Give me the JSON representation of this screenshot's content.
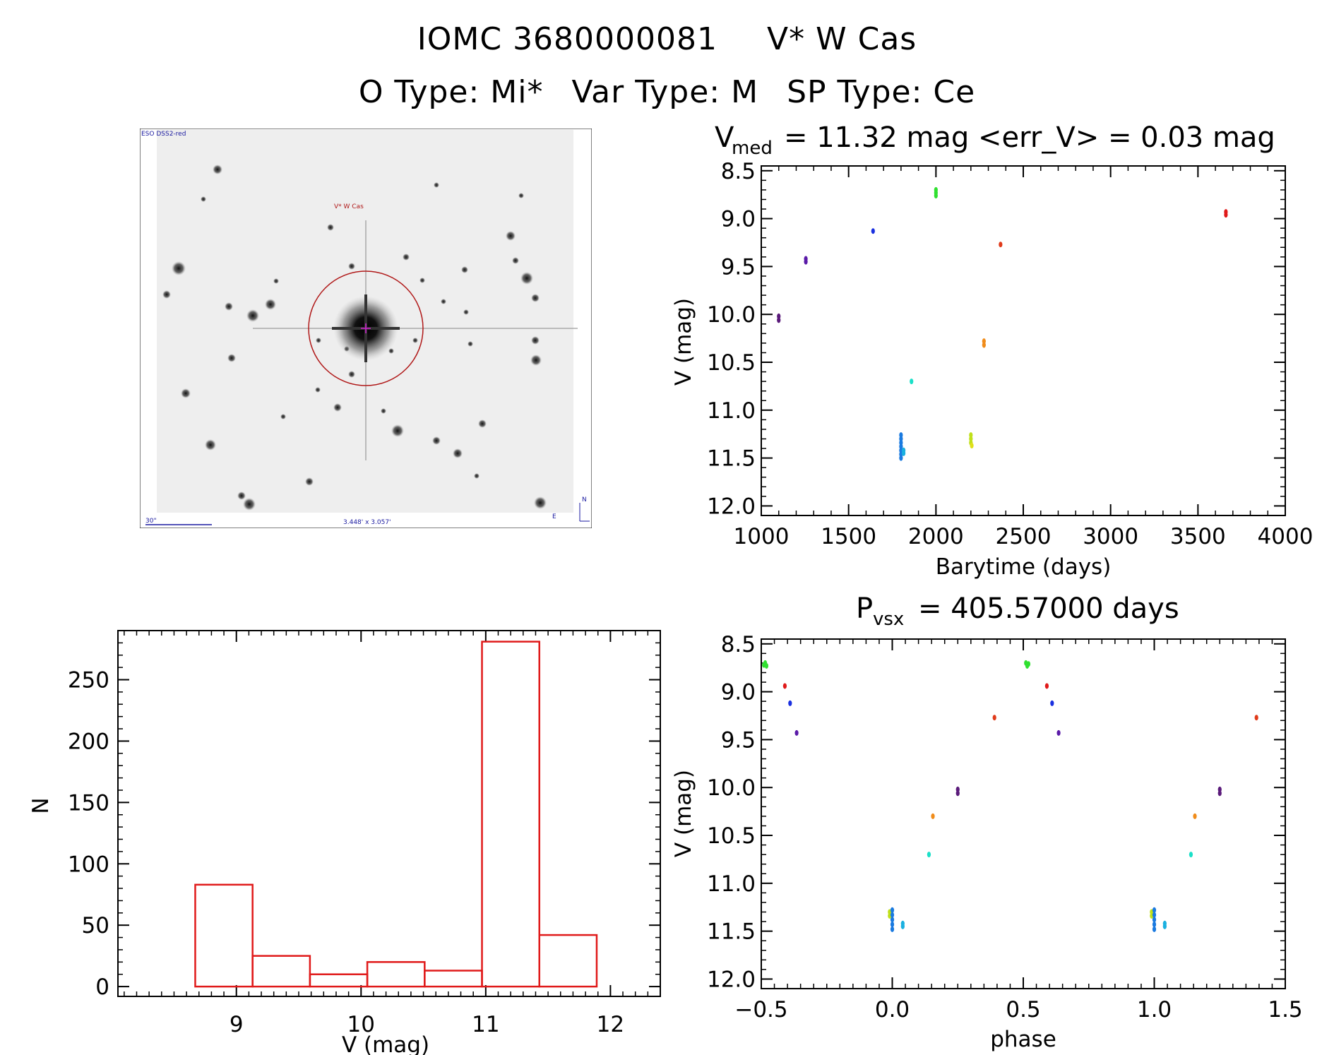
{
  "header": {
    "title_id": "IOMC 3680000081",
    "title_name": "V* W Cas",
    "otype_label": "O Type: Mi*",
    "vartype_label": "Var Type: M",
    "sptype_label": "SP Type: Ce"
  },
  "thumbnail": {
    "survey": "ESO DSS2-red",
    "target": "V* W Cas",
    "scale": "30\"",
    "size": "3.448' x 3.057'",
    "north": "N",
    "east": "E"
  },
  "chart_data": [
    {
      "type": "scatter",
      "id": "light-curve",
      "title_main": "V",
      "title_sub": "med",
      "title_rest": "= 11.32 mag <err_V> = 0.03 mag",
      "xlabel": "Barytime (days)",
      "ylabel": "V (mag)",
      "xlim": [
        1000,
        4000
      ],
      "ylim": [
        12.1,
        8.45
      ],
      "y_inverted": true,
      "xticks": [
        1000,
        1500,
        2000,
        2500,
        3000,
        3500,
        4000
      ],
      "yticks": [
        8.5,
        9.0,
        9.5,
        10.0,
        10.5,
        11.0,
        11.5,
        12.0
      ],
      "yticklabels": [
        "8.5",
        "9.0",
        "9.5",
        "10.0",
        "10.5",
        "11.0",
        "11.5",
        "12.0"
      ],
      "points": [
        {
          "x": 1100,
          "y": 10.02,
          "color": "#5a1a7a"
        },
        {
          "x": 1100,
          "y": 10.06,
          "color": "#5a1a7a"
        },
        {
          "x": 1255,
          "y": 9.42,
          "color": "#5a1aa8"
        },
        {
          "x": 1255,
          "y": 9.45,
          "color": "#5a1aa8"
        },
        {
          "x": 1640,
          "y": 9.13,
          "color": "#1a30e0"
        },
        {
          "x": 1800,
          "y": 11.26,
          "color": "#1a7ae0"
        },
        {
          "x": 1800,
          "y": 11.3,
          "color": "#1a7ae0"
        },
        {
          "x": 1800,
          "y": 11.34,
          "color": "#1a7ae0"
        },
        {
          "x": 1800,
          "y": 11.38,
          "color": "#1a7ae0"
        },
        {
          "x": 1800,
          "y": 11.42,
          "color": "#1a7ae0"
        },
        {
          "x": 1800,
          "y": 11.46,
          "color": "#1a7ae0"
        },
        {
          "x": 1800,
          "y": 11.5,
          "color": "#1a7ae0"
        },
        {
          "x": 1815,
          "y": 11.42,
          "color": "#1ab0e0"
        },
        {
          "x": 1815,
          "y": 11.45,
          "color": "#1ab0e0"
        },
        {
          "x": 1860,
          "y": 10.7,
          "color": "#1ae0c8"
        },
        {
          "x": 2000,
          "y": 8.7,
          "color": "#30e030"
        },
        {
          "x": 2000,
          "y": 8.73,
          "color": "#30e030"
        },
        {
          "x": 2000,
          "y": 8.76,
          "color": "#30e030"
        },
        {
          "x": 2200,
          "y": 11.26,
          "color": "#c0e01a"
        },
        {
          "x": 2200,
          "y": 11.3,
          "color": "#c0e01a"
        },
        {
          "x": 2200,
          "y": 11.34,
          "color": "#c0e01a"
        },
        {
          "x": 2205,
          "y": 11.37,
          "color": "#e0e01a"
        },
        {
          "x": 2275,
          "y": 10.28,
          "color": "#f08c1a"
        },
        {
          "x": 2275,
          "y": 10.32,
          "color": "#f08c1a"
        },
        {
          "x": 2370,
          "y": 9.27,
          "color": "#e03a1a"
        },
        {
          "x": 3660,
          "y": 8.93,
          "color": "#e01a1a"
        },
        {
          "x": 3660,
          "y": 8.96,
          "color": "#e01a1a"
        }
      ]
    },
    {
      "type": "bar",
      "id": "histogram",
      "xlabel": "V (mag)",
      "ylabel": "N",
      "xlim": [
        8.05,
        12.4
      ],
      "ylim": [
        -8,
        290
      ],
      "xticks": [
        9,
        10,
        11,
        12
      ],
      "yticks": [
        0,
        50,
        100,
        150,
        200,
        250
      ],
      "bin_edges": [
        8.67,
        9.13,
        9.59,
        10.05,
        10.51,
        10.97,
        11.43,
        11.89
      ],
      "values": [
        83,
        25,
        10,
        20,
        13,
        281,
        42
      ],
      "color": "#e01a1a"
    },
    {
      "type": "scatter",
      "id": "phased-curve",
      "title_main": "P",
      "title_sub": "vsx",
      "title_rest": "= 405.57000 days",
      "xlabel": "phase",
      "ylabel": "V (mag)",
      "xlim": [
        -0.5,
        1.5
      ],
      "ylim": [
        12.1,
        8.45
      ],
      "y_inverted": true,
      "xticks": [
        -0.5,
        0.0,
        0.5,
        1.0,
        1.5
      ],
      "xticklabels": [
        "−0.5",
        "0.0",
        "0.5",
        "1.0",
        "1.5"
      ],
      "yticks": [
        8.5,
        9.0,
        9.5,
        10.0,
        10.5,
        11.0,
        11.5,
        12.0
      ],
      "yticklabels": [
        "8.5",
        "9.0",
        "9.5",
        "10.0",
        "10.5",
        "11.0",
        "11.5",
        "12.0"
      ],
      "points": [
        {
          "x": -0.49,
          "y": 8.72,
          "color": "#30e030"
        },
        {
          "x": -0.485,
          "y": 8.7,
          "color": "#30e030"
        },
        {
          "x": -0.48,
          "y": 8.73,
          "color": "#30e030"
        },
        {
          "x": -0.41,
          "y": 8.94,
          "color": "#e01a1a"
        },
        {
          "x": -0.39,
          "y": 9.12,
          "color": "#1a30e0"
        },
        {
          "x": -0.365,
          "y": 9.43,
          "color": "#5a1aa8"
        },
        {
          "x": -0.01,
          "y": 11.3,
          "color": "#c0e01a"
        },
        {
          "x": -0.01,
          "y": 11.34,
          "color": "#c0e01a"
        },
        {
          "x": 0.0,
          "y": 11.28,
          "color": "#1a7ae0"
        },
        {
          "x": 0.0,
          "y": 11.33,
          "color": "#1a7ae0"
        },
        {
          "x": 0.0,
          "y": 11.38,
          "color": "#1a7ae0"
        },
        {
          "x": 0.0,
          "y": 11.43,
          "color": "#1a7ae0"
        },
        {
          "x": 0.0,
          "y": 11.48,
          "color": "#1a7ae0"
        },
        {
          "x": 0.04,
          "y": 11.42,
          "color": "#1ab0e0"
        },
        {
          "x": 0.04,
          "y": 11.45,
          "color": "#1ab0e0"
        },
        {
          "x": 0.14,
          "y": 10.7,
          "color": "#1ae0c8"
        },
        {
          "x": 0.155,
          "y": 10.3,
          "color": "#f08c1a"
        },
        {
          "x": 0.25,
          "y": 10.02,
          "color": "#5a1a7a"
        },
        {
          "x": 0.25,
          "y": 10.06,
          "color": "#5a1a7a"
        },
        {
          "x": 0.39,
          "y": 9.27,
          "color": "#e03a1a"
        },
        {
          "x": 0.51,
          "y": 8.7,
          "color": "#30e030"
        },
        {
          "x": 0.515,
          "y": 8.73,
          "color": "#30e030"
        },
        {
          "x": 0.52,
          "y": 8.71,
          "color": "#30e030"
        },
        {
          "x": 0.59,
          "y": 8.94,
          "color": "#e01a1a"
        },
        {
          "x": 0.61,
          "y": 9.12,
          "color": "#1a30e0"
        },
        {
          "x": 0.635,
          "y": 9.43,
          "color": "#5a1aa8"
        },
        {
          "x": 0.99,
          "y": 11.3,
          "color": "#c0e01a"
        },
        {
          "x": 0.99,
          "y": 11.34,
          "color": "#c0e01a"
        },
        {
          "x": 1.0,
          "y": 11.28,
          "color": "#1a7ae0"
        },
        {
          "x": 1.0,
          "y": 11.33,
          "color": "#1a7ae0"
        },
        {
          "x": 1.0,
          "y": 11.38,
          "color": "#1a7ae0"
        },
        {
          "x": 1.0,
          "y": 11.43,
          "color": "#1a7ae0"
        },
        {
          "x": 1.0,
          "y": 11.48,
          "color": "#1a7ae0"
        },
        {
          "x": 1.04,
          "y": 11.42,
          "color": "#1ab0e0"
        },
        {
          "x": 1.04,
          "y": 11.45,
          "color": "#1ab0e0"
        },
        {
          "x": 1.14,
          "y": 10.7,
          "color": "#1ae0c8"
        },
        {
          "x": 1.155,
          "y": 10.3,
          "color": "#f08c1a"
        },
        {
          "x": 1.25,
          "y": 10.02,
          "color": "#5a1a7a"
        },
        {
          "x": 1.25,
          "y": 10.06,
          "color": "#5a1a7a"
        },
        {
          "x": 1.39,
          "y": 9.27,
          "color": "#e03a1a"
        }
      ]
    }
  ]
}
